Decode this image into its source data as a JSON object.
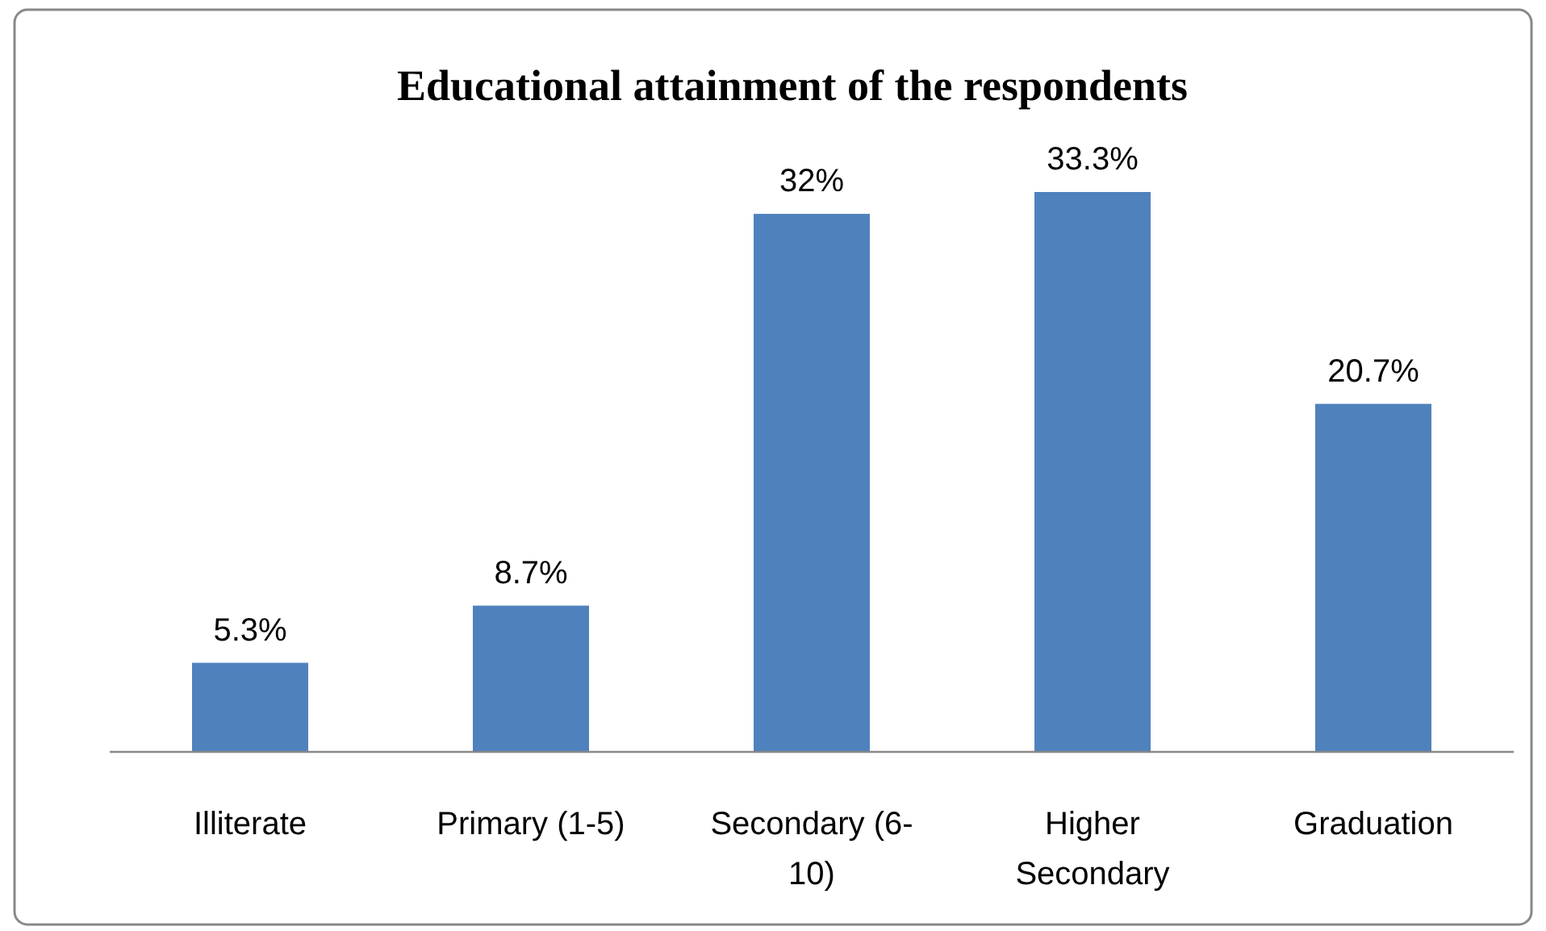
{
  "chart_data": {
    "type": "bar",
    "title": "Educational attainment of the respondents",
    "categories": [
      "Illiterate",
      "Primary (1-5)",
      "Secondary (6-10)",
      "Higher Secondary",
      "Graduation"
    ],
    "values": [
      5.3,
      8.7,
      32,
      33.3,
      20.7
    ],
    "value_labels": [
      "5.3%",
      "8.7%",
      "32%",
      "33.3%",
      "20.7%"
    ],
    "color": "#4f81bd"
  }
}
